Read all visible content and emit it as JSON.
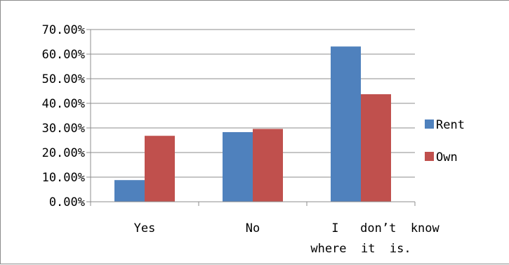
{
  "chart_data": {
    "type": "bar",
    "categories": [
      [
        "Yes"
      ],
      [
        "No"
      ],
      [
        "I   don’t  know",
        "where  it  is."
      ]
    ],
    "series": [
      {
        "name": "Rent",
        "color": "#4f81bd",
        "values": [
          8.8,
          28.3,
          63.1
        ]
      },
      {
        "name": "Own",
        "color": "#c0504d",
        "values": [
          26.8,
          29.6,
          43.7
        ]
      }
    ],
    "ylim": [
      0,
      70
    ],
    "yticks": [
      "0.00%",
      "10.00%",
      "20.00%",
      "30.00%",
      "40.00%",
      "50.00%",
      "60.00%",
      "70.00%"
    ],
    "grid": true,
    "legend": "right"
  }
}
